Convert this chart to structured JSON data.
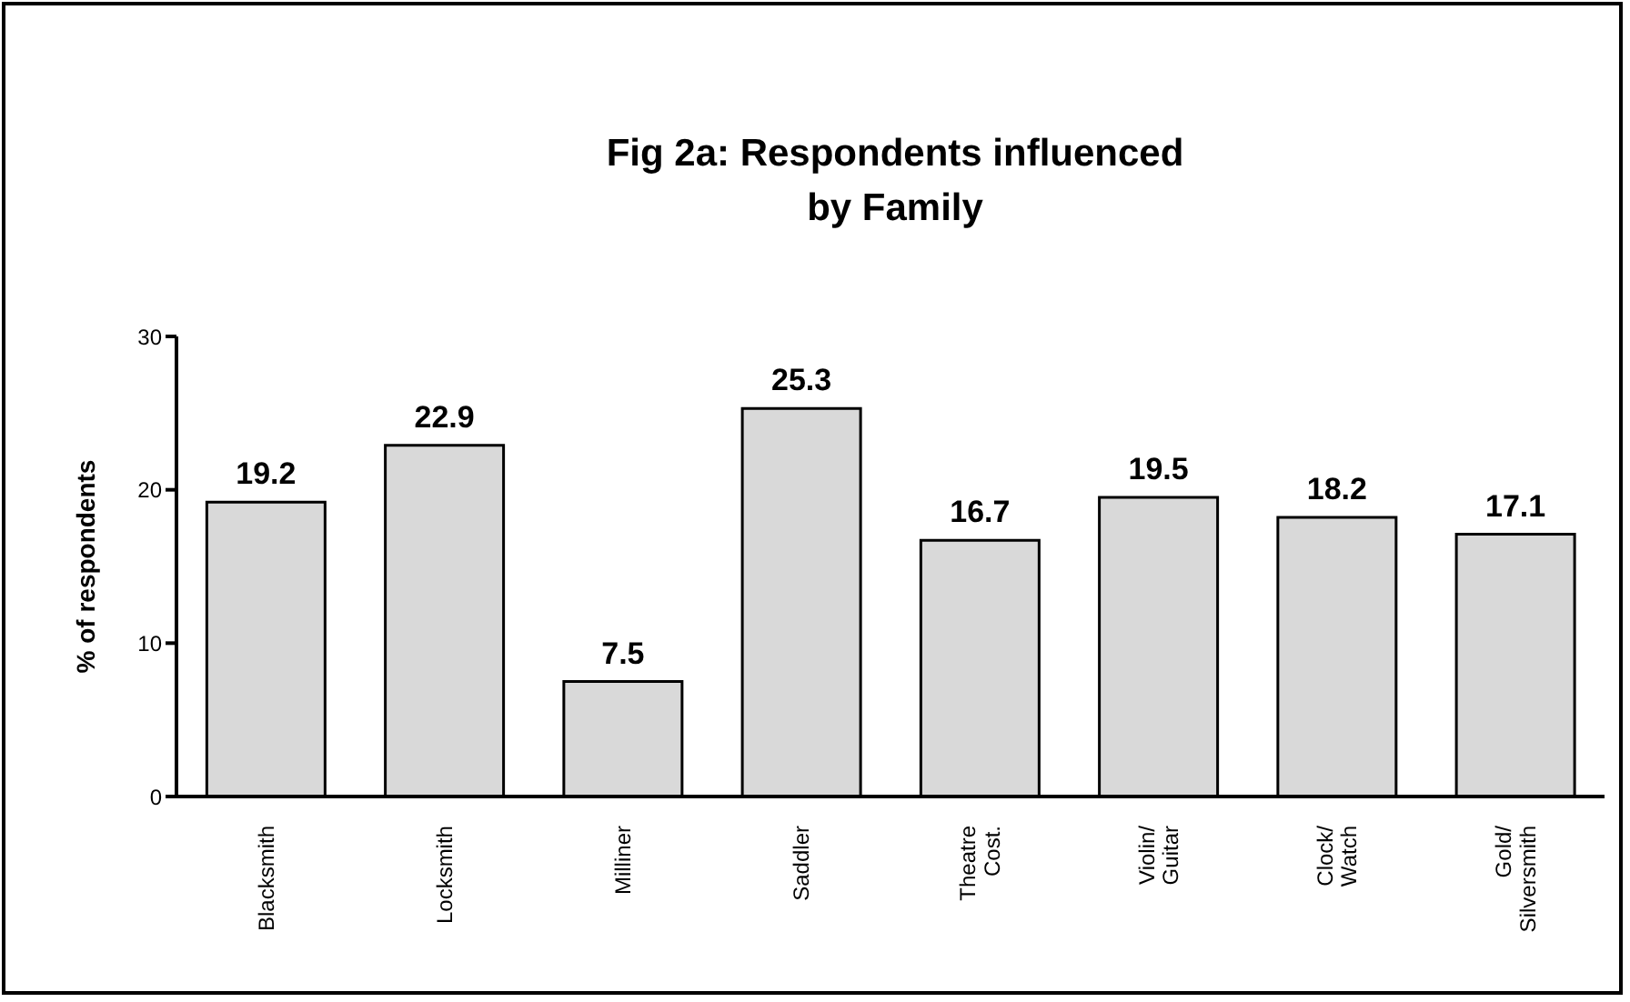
{
  "chart_data": {
    "type": "bar",
    "title": "Fig 2a:  Respondents influenced\nby Family",
    "ylabel": "% of respondents",
    "categories": [
      "Blacksmith",
      "Locksmith",
      "Milliner",
      "Saddler",
      "Theatre\nCost.",
      "Violin/\nGuitar",
      "Clock/\nWatch",
      "Gold/\nSilversmith"
    ],
    "values": [
      19.2,
      22.9,
      7.5,
      25.3,
      16.7,
      19.5,
      18.2,
      17.1
    ],
    "color": "#d9d9d9",
    "ylim": [
      0,
      30
    ],
    "yticks": [
      0,
      10,
      20,
      30
    ],
    "grid": false,
    "data_labels": true
  }
}
